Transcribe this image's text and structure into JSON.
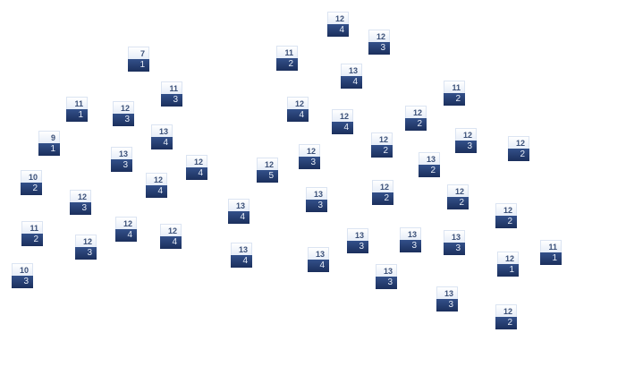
{
  "tiles": [
    {
      "top": "12",
      "bottom": "4"
    },
    {
      "top": "12",
      "bottom": "3"
    },
    {
      "top": "11",
      "bottom": "2"
    },
    {
      "top": "13",
      "bottom": "4"
    },
    {
      "top": "12",
      "bottom": "4"
    },
    {
      "top": "12",
      "bottom": "4"
    },
    {
      "top": "11",
      "bottom": "2"
    },
    {
      "top": "12",
      "bottom": "2"
    },
    {
      "top": "12",
      "bottom": "2"
    },
    {
      "top": "12",
      "bottom": "3"
    },
    {
      "top": "12",
      "bottom": "2"
    },
    {
      "top": "12",
      "bottom": "3"
    },
    {
      "top": "13",
      "bottom": "2"
    },
    {
      "top": "12",
      "bottom": "5"
    },
    {
      "top": "7",
      "bottom": "1"
    },
    {
      "top": "11",
      "bottom": "3"
    },
    {
      "top": "11",
      "bottom": "1"
    },
    {
      "top": "12",
      "bottom": "3"
    },
    {
      "top": "13",
      "bottom": "4"
    },
    {
      "top": "9",
      "bottom": "1"
    },
    {
      "top": "13",
      "bottom": "3"
    },
    {
      "top": "12",
      "bottom": "4"
    },
    {
      "top": "10",
      "bottom": "2"
    },
    {
      "top": "12",
      "bottom": "4"
    },
    {
      "top": "12",
      "bottom": "3"
    },
    {
      "top": "13",
      "bottom": "4"
    },
    {
      "top": "11",
      "bottom": "2"
    },
    {
      "top": "12",
      "bottom": "4"
    },
    {
      "top": "12",
      "bottom": "4"
    },
    {
      "top": "12",
      "bottom": "3"
    },
    {
      "top": "13",
      "bottom": "4"
    },
    {
      "top": "10",
      "bottom": "3"
    },
    {
      "top": "13",
      "bottom": "3"
    },
    {
      "top": "12",
      "bottom": "2"
    },
    {
      "top": "12",
      "bottom": "2"
    },
    {
      "top": "12",
      "bottom": "2"
    },
    {
      "top": "13",
      "bottom": "3"
    },
    {
      "top": "13",
      "bottom": "3"
    },
    {
      "top": "13",
      "bottom": "3"
    },
    {
      "top": "13",
      "bottom": "4"
    },
    {
      "top": "11",
      "bottom": "1"
    },
    {
      "top": "12",
      "bottom": "1"
    },
    {
      "top": "13",
      "bottom": "3"
    },
    {
      "top": "13",
      "bottom": "3"
    },
    {
      "top": "12",
      "bottom": "2"
    }
  ],
  "colors": {
    "tile_top": "#eef3fa",
    "tile_bottom": "#24396a",
    "top_text": "#3b5078"
  }
}
